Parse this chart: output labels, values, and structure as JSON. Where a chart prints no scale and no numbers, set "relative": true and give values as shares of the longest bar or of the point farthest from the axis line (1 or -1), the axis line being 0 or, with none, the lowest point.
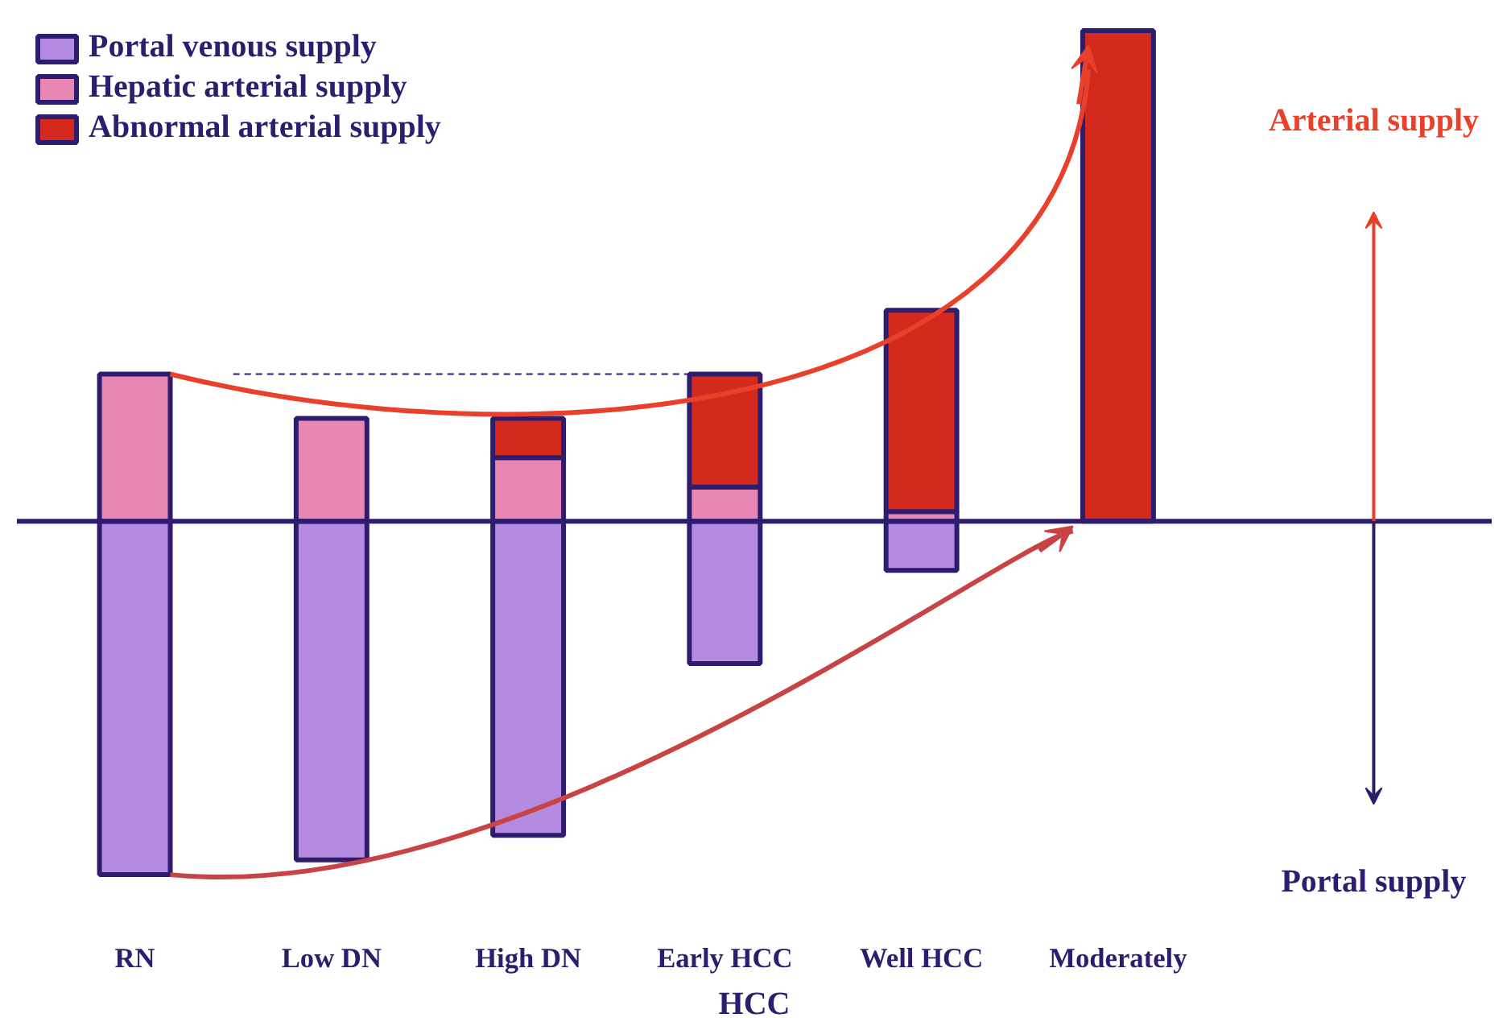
{
  "chart_data": {
    "type": "bar",
    "stacked": true,
    "relative": true,
    "categories": [
      "RN",
      "Low DN",
      "High DN",
      "Early HCC",
      "Well HCC",
      "Moderately"
    ],
    "xlabel": "HCC",
    "series": [
      {
        "name": "Portal venous supply",
        "color": "#b48be0",
        "values": [
          -0.72,
          -0.69,
          -0.64,
          -0.29,
          -0.1,
          0
        ]
      },
      {
        "name": "Hepatic arterial supply",
        "color": "#e887b4",
        "values": [
          0.3,
          0.21,
          0.13,
          0.07,
          0.02,
          0
        ]
      },
      {
        "name": "Abnormal arterial supply",
        "color": "#d42a1e",
        "values": [
          0,
          0,
          0.08,
          0.23,
          0.41,
          1
        ]
      }
    ],
    "ref_lines": [
      {
        "axis": "y",
        "value": 0,
        "color": "#2e1c6e",
        "line_style": "solid"
      },
      {
        "axis": "y",
        "value": 0.3,
        "color": "#2e1c6e",
        "line_style": "dashed"
      }
    ],
    "annotations": [
      "Arterial supply",
      "Portal supply"
    ],
    "legend": "top left",
    "grid": false
  }
}
